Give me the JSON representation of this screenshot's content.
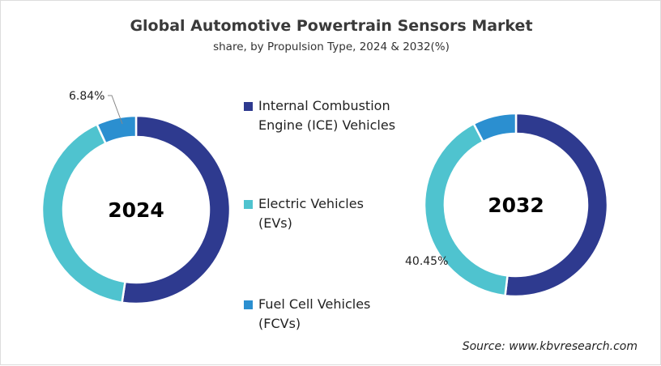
{
  "title": "Global Automotive Powertrain Sensors Market",
  "subtitle": "share, by Propulsion Type, 2024 & 2032(%)",
  "source": "Source: www.kbvresearch.com",
  "chart_data": [
    {
      "type": "pie",
      "variant": "donut",
      "center_label": "2024",
      "categories": [
        "Internal Combustion Engine (ICE) Vehicles",
        "Electric Vehicles (EVs)",
        "Fuel Cell Vehicles (FCVs)"
      ],
      "values": [
        52.4,
        40.76,
        6.84
      ],
      "data_labels": [
        "",
        "",
        "6.84%"
      ],
      "colors": [
        "#2e3a8f",
        "#4fc3cf",
        "#2b8fd0"
      ]
    },
    {
      "type": "pie",
      "variant": "donut",
      "center_label": "2032",
      "categories": [
        "Internal Combustion Engine (ICE) Vehicles",
        "Electric Vehicles (EVs)",
        "Fuel Cell Vehicles (FCVs)"
      ],
      "values": [
        51.9,
        40.45,
        7.65
      ],
      "data_labels": [
        "",
        "40.45%",
        ""
      ],
      "colors": [
        "#2e3a8f",
        "#4fc3cf",
        "#2b8fd0"
      ]
    }
  ],
  "legend": {
    "placement": "center",
    "items": [
      {
        "label_line1": "Internal Combustion",
        "label_line2": "Engine (ICE) Vehicles",
        "color": "#2e3a8f"
      },
      {
        "label_line1": "Electric Vehicles",
        "label_line2": "(EVs)",
        "color": "#4fc3cf"
      },
      {
        "label_line1": "Fuel Cell Vehicles",
        "label_line2": "(FCVs)",
        "color": "#2b8fd0"
      }
    ]
  }
}
